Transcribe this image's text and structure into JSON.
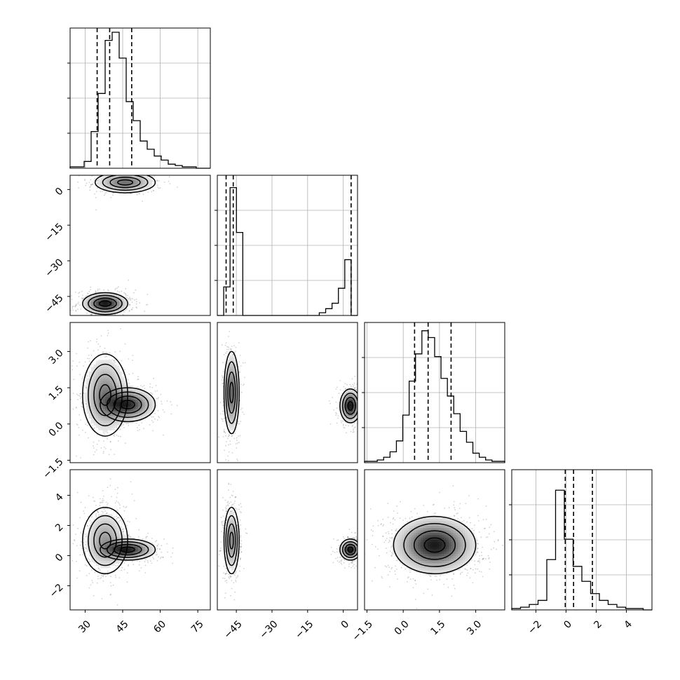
{
  "chart_data": {
    "type": "corner",
    "title": "",
    "grid": true,
    "parameters": [
      {
        "name": "",
        "range": [
          24,
          80
        ],
        "ticks": [
          "30",
          "45",
          "60",
          "75"
        ],
        "tick_values": [
          30,
          45,
          60,
          75
        ],
        "quantiles": [
          34.8,
          39.8,
          48.6
        ]
      },
      {
        "name": "",
        "range": [
          -53,
          6
        ],
        "ticks": [
          "0",
          "−15",
          "−30",
          "−45"
        ],
        "tick_values": [
          0,
          -15,
          -30,
          -45
        ],
        "quantiles": [
          -49.3,
          -46.3,
          3.3
        ]
      },
      {
        "name": "",
        "range": [
          -1.6,
          4.2
        ],
        "ticks": [
          "−1.5",
          "0.0",
          "1.5",
          "3.0"
        ],
        "tick_values": [
          -1.5,
          0.0,
          1.5,
          3.0
        ],
        "quantiles": [
          0.47,
          1.03,
          1.98
        ]
      },
      {
        "name": "",
        "range": [
          -3.6,
          5.7
        ],
        "ticks": [
          "4",
          "2",
          "0",
          "−2"
        ],
        "tick_values": [
          4,
          2,
          0,
          -2
        ],
        "quantiles": [
          -0.05,
          0.5,
          1.75
        ]
      }
    ],
    "bottom_ticks": [
      [
        "30",
        "45",
        "60",
        "75"
      ],
      [
        "−45",
        "−30",
        "−15",
        "0"
      ],
      [
        "−1.5",
        "0.0",
        "1.5",
        "3.0"
      ],
      [
        "−2",
        "0",
        "2",
        "4"
      ]
    ],
    "histograms": [
      [
        0.01,
        0.01,
        0.05,
        0.27,
        0.55,
        0.94,
        1.0,
        0.81,
        0.49,
        0.35,
        0.2,
        0.14,
        0.09,
        0.06,
        0.03,
        0.02,
        0.01,
        0.01,
        0,
        0
      ],
      [
        0,
        0.21,
        0.94,
        0.61,
        0,
        0,
        0,
        0,
        0,
        0,
        0,
        0,
        0,
        0,
        0,
        0,
        0.02,
        0.05,
        0.09,
        0.2,
        0.41,
        0
      ],
      [
        0.01,
        0.01,
        0.02,
        0.04,
        0.08,
        0.16,
        0.35,
        0.6,
        0.8,
        0.97,
        0.92,
        0.78,
        0.62,
        0.49,
        0.36,
        0.23,
        0.15,
        0.07,
        0.04,
        0.02,
        0.01,
        0.01
      ],
      [
        0.01,
        0.02,
        0.04,
        0.07,
        0.37,
        0.88,
        0.52,
        0.32,
        0.21,
        0.12,
        0.07,
        0.04,
        0.02,
        0.01,
        0.01,
        0
      ]
    ],
    "modes": [
      {
        "row": 1,
        "col": 0,
        "components": [
          {
            "x": 46,
            "y": 3,
            "sx": 6,
            "sy": 2.2,
            "w": 0.45
          },
          {
            "x": 38,
            "y": -48,
            "sx": 4.5,
            "sy": 2.3,
            "w": 0.55
          }
        ]
      },
      {
        "row": 2,
        "col": 0,
        "components": [
          {
            "x": 38,
            "y": 1.2,
            "sx": 4.5,
            "sy": 0.85,
            "w": 0.55
          },
          {
            "x": 47,
            "y": 0.8,
            "sx": 5.5,
            "sy": 0.35,
            "w": 0.45
          }
        ]
      },
      {
        "row": 2,
        "col": 1,
        "components": [
          {
            "x": -47,
            "y": 1.3,
            "sx": 1.6,
            "sy": 0.85,
            "w": 0.55
          },
          {
            "x": 3,
            "y": 0.75,
            "sx": 2.2,
            "sy": 0.35,
            "w": 0.45
          }
        ]
      },
      {
        "row": 3,
        "col": 0,
        "components": [
          {
            "x": 38,
            "y": 1.0,
            "sx": 4.5,
            "sy": 1.1,
            "w": 0.55
          },
          {
            "x": 47,
            "y": 0.4,
            "sx": 5.5,
            "sy": 0.35,
            "w": 0.45
          }
        ]
      },
      {
        "row": 3,
        "col": 1,
        "components": [
          {
            "x": -47,
            "y": 1.0,
            "sx": 1.6,
            "sy": 1.1,
            "w": 0.55
          },
          {
            "x": 3,
            "y": 0.4,
            "sx": 2.2,
            "sy": 0.35,
            "w": 0.45
          }
        ]
      },
      {
        "row": 3,
        "col": 2,
        "components": [
          {
            "x": 1.3,
            "y": 0.7,
            "sx": 0.85,
            "sy": 0.95,
            "w": 1.0
          }
        ]
      }
    ]
  }
}
